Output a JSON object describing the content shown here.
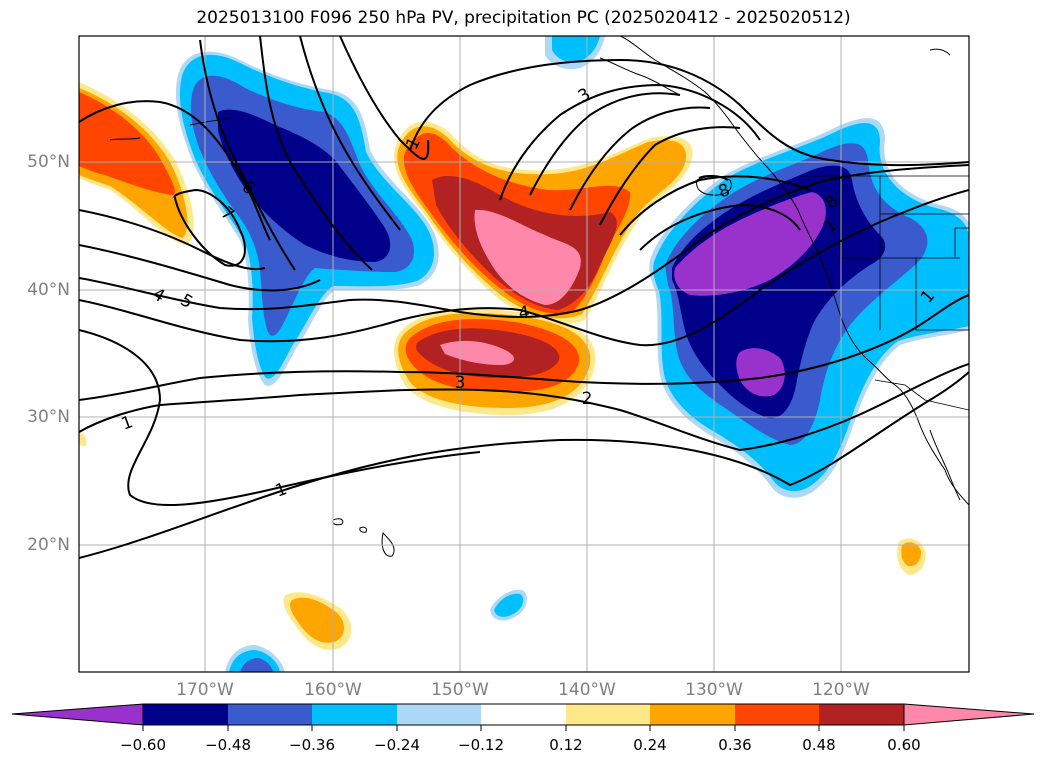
{
  "title": "2025013100 F096 250 hPa PV, precipitation PC (2025020412 - 2025020512)",
  "map": {
    "lat_labels": [
      "50°N",
      "40°N",
      "30°N",
      "20°N"
    ],
    "lon_labels": [
      "170°W",
      "160°W",
      "150°W",
      "140°W",
      "130°W",
      "120°W"
    ],
    "pv_contour_labels": [
      "1",
      "1",
      "1",
      "1",
      "1",
      "2",
      "3",
      "3",
      "4",
      "4",
      "5",
      "6",
      "7",
      "8",
      "8"
    ]
  },
  "colorbar": {
    "ticks": [
      "−0.60",
      "−0.48",
      "−0.36",
      "−0.24",
      "−0.12",
      "0.12",
      "0.24",
      "0.36",
      "0.48",
      "0.60"
    ],
    "colors": [
      "#9932cc",
      "#00008b",
      "#3a5bcd",
      "#00bfff",
      "#add8f6",
      "#ffffff",
      "#ffe88a",
      "#ffa500",
      "#ff4500",
      "#b22222",
      "#ff88aa"
    ]
  }
}
